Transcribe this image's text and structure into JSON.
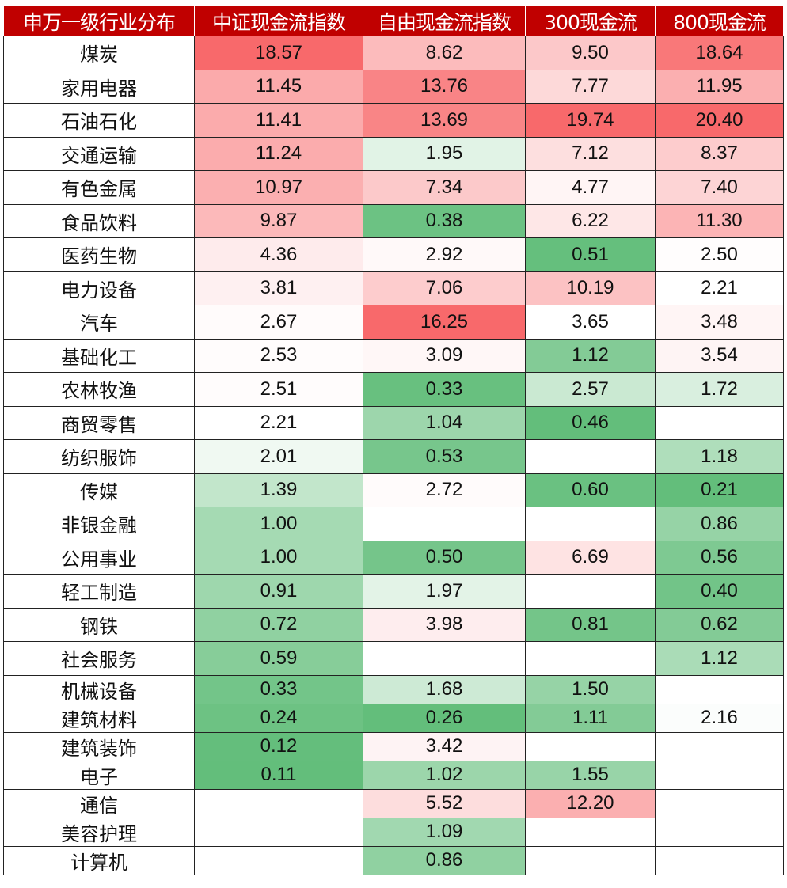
{
  "table": {
    "headers": [
      "申万一级行业分布",
      "中证现金流指数",
      "自由现金流指数",
      "300现金流",
      "800现金流"
    ],
    "header_bg": "#c00000",
    "color_scale": {
      "low": "#63be7b",
      "mid": "#ffffff",
      "high": "#f8696b"
    },
    "rows": [
      [
        "煤炭",
        "18.57",
        "8.62",
        "9.50",
        "18.64"
      ],
      [
        "家用电器",
        "11.45",
        "13.76",
        "7.77",
        "11.95"
      ],
      [
        "石油石化",
        "11.41",
        "13.69",
        "19.74",
        "20.40"
      ],
      [
        "交通运输",
        "11.24",
        "1.95",
        "7.12",
        "8.37"
      ],
      [
        "有色金属",
        "10.97",
        "7.34",
        "4.77",
        "7.40"
      ],
      [
        "食品饮料",
        "9.87",
        "0.38",
        "6.22",
        "11.30"
      ],
      [
        "医药生物",
        "4.36",
        "2.92",
        "0.51",
        "2.50"
      ],
      [
        "电力设备",
        "3.81",
        "7.06",
        "10.19",
        "2.21"
      ],
      [
        "汽车",
        "2.67",
        "16.25",
        "3.65",
        "3.48"
      ],
      [
        "基础化工",
        "2.53",
        "3.09",
        "1.12",
        "3.54"
      ],
      [
        "农林牧渔",
        "2.51",
        "0.33",
        "2.57",
        "1.72"
      ],
      [
        "商贸零售",
        "2.21",
        "1.04",
        "0.46",
        ""
      ],
      [
        "纺织服饰",
        "2.01",
        "0.53",
        "",
        "1.18"
      ],
      [
        "传媒",
        "1.39",
        "2.72",
        "0.60",
        "0.21"
      ],
      [
        "非银金融",
        "1.00",
        "",
        "",
        "0.86"
      ],
      [
        "公用事业",
        "1.00",
        "0.50",
        "6.69",
        "0.56"
      ],
      [
        "轻工制造",
        "0.91",
        "1.97",
        "",
        "0.40"
      ],
      [
        "钢铁",
        "0.72",
        "3.98",
        "0.81",
        "0.62"
      ],
      [
        "社会服务",
        "0.59",
        "",
        "",
        "1.12"
      ],
      [
        "机械设备",
        "0.33",
        "1.68",
        "1.50",
        ""
      ],
      [
        "建筑材料",
        "0.24",
        "0.26",
        "1.11",
        "2.16"
      ],
      [
        "建筑装饰",
        "0.12",
        "3.42",
        "",
        ""
      ],
      [
        "电子",
        "0.11",
        "1.02",
        "1.55",
        ""
      ],
      [
        "通信",
        "",
        "5.52",
        "12.20",
        ""
      ],
      [
        "美容护理",
        "",
        "1.09",
        "",
        ""
      ],
      [
        "计算机",
        "",
        "0.86",
        "",
        ""
      ]
    ]
  }
}
